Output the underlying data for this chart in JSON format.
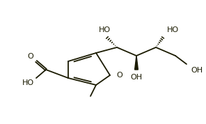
{
  "bg_color": "#ffffff",
  "bond_color": "#1a1a00",
  "lw": 1.3,
  "fs": 8.0,
  "figsize": [
    2.96,
    1.78
  ],
  "dpi": 100,
  "xlim": [
    0,
    2.96
  ],
  "ylim": [
    0,
    1.78
  ]
}
